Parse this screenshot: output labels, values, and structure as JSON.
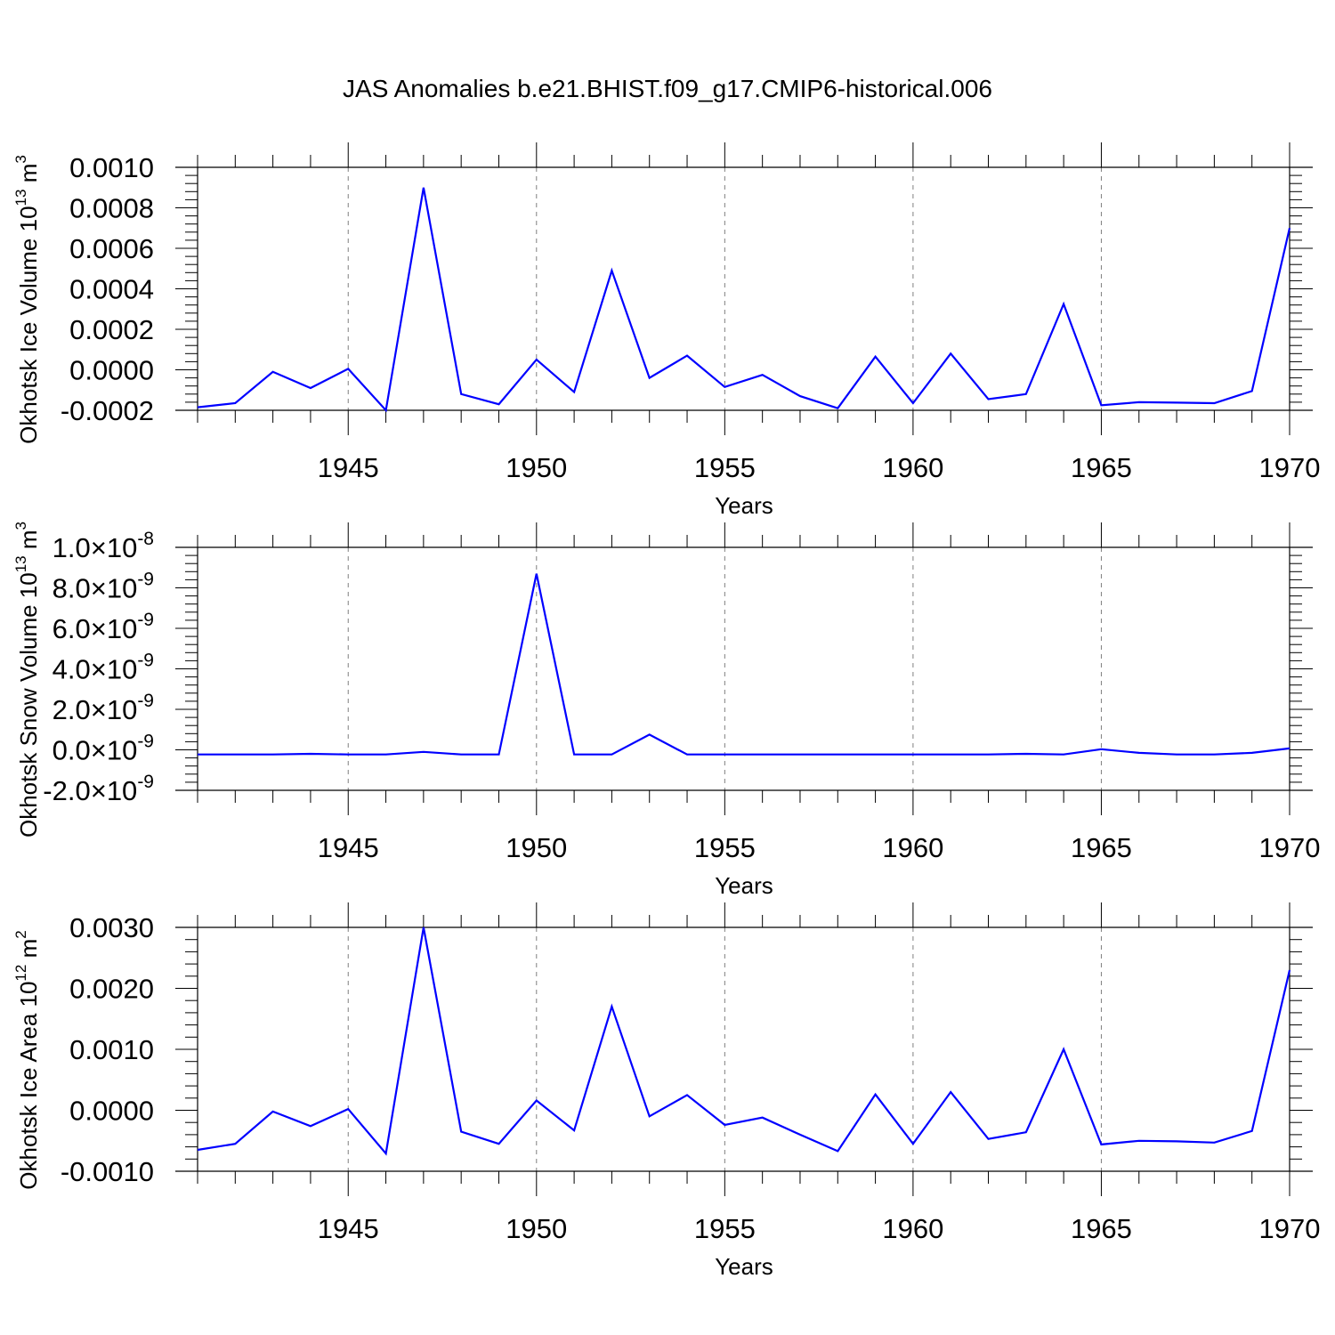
{
  "title": "JAS Anomalies b.e21.BHIST.f09_g17.CMIP6-historical.006",
  "colors": {
    "line": "#0000ff",
    "axis": "#000000",
    "grid": "#7f7f7f"
  },
  "chart_data": [
    {
      "type": "line",
      "name": "ice-volume",
      "ylabel_main": "Okhotsk Ice Volume 10",
      "ylabel_exp": "13",
      "ylabel_unit": " m",
      "ylabel_unit_exp": "3",
      "xlabel": "Years",
      "xlim": [
        1941,
        1971.2
      ],
      "ylim": [
        -0.0002,
        0.001
      ],
      "xticks": [
        1945,
        1950,
        1955,
        1960,
        1965,
        1970
      ],
      "xtick_labels": [
        "1945",
        "1950",
        "1955",
        "1960",
        "1965",
        "1970"
      ],
      "yticks": [
        -0.0002,
        0.0,
        0.0002,
        0.0004,
        0.0006,
        0.0008,
        0.001
      ],
      "ytick_labels": [
        "-0.0002",
        "0.0000",
        "0.0002",
        "0.0004",
        "0.0006",
        "0.0008",
        "0.0010"
      ],
      "x": [
        1941,
        1942,
        1943,
        1944,
        1945,
        1946,
        1947,
        1948,
        1949,
        1950,
        1951,
        1952,
        1953,
        1954,
        1955,
        1956,
        1957,
        1958,
        1959,
        1960,
        1961,
        1962,
        1963,
        1964,
        1965,
        1966,
        1967,
        1968,
        1969,
        1970
      ],
      "values": [
        -0.000185,
        -0.000165,
        -1e-05,
        -9e-05,
        5e-06,
        -0.0002,
        0.0009,
        -0.00012,
        -0.00017,
        5e-05,
        -0.00011,
        0.00049,
        -4e-05,
        7e-05,
        -8.5e-05,
        -2.5e-05,
        -0.00013,
        -0.00019,
        6.5e-05,
        -0.000165,
        8e-05,
        -0.000145,
        -0.00012,
        0.000325,
        -0.000175,
        -0.00016,
        -0.000162,
        -0.000165,
        -0.000105,
        0.0007
      ]
    },
    {
      "type": "line",
      "name": "snow-volume",
      "ylabel_main": "Okhotsk Snow Volume 10",
      "ylabel_exp": "13",
      "ylabel_unit": " m",
      "ylabel_unit_exp": "3",
      "xlabel": "Years",
      "xlim": [
        1941,
        1971.2
      ],
      "ylim": [
        -2e-09,
        1e-08
      ],
      "xticks": [
        1945,
        1950,
        1955,
        1960,
        1965,
        1970
      ],
      "xtick_labels": [
        "1945",
        "1950",
        "1955",
        "1960",
        "1965",
        "1970"
      ],
      "yticks": [
        -2e-09,
        0.0,
        2e-09,
        4e-09,
        6e-09,
        8e-09,
        1e-08
      ],
      "ytick_labels": [
        {
          "mant": "-2.0",
          "exp": "-9"
        },
        {
          "mant": "0.0",
          "exp": "-9"
        },
        {
          "mant": "2.0",
          "exp": "-9"
        },
        {
          "mant": "4.0",
          "exp": "-9"
        },
        {
          "mant": "6.0",
          "exp": "-9"
        },
        {
          "mant": "8.0",
          "exp": "-9"
        },
        {
          "mant": "1.0",
          "exp": "-8"
        }
      ],
      "x": [
        1941,
        1942,
        1943,
        1944,
        1945,
        1946,
        1947,
        1948,
        1949,
        1950,
        1951,
        1952,
        1953,
        1954,
        1955,
        1956,
        1957,
        1958,
        1959,
        1960,
        1961,
        1962,
        1963,
        1964,
        1965,
        1966,
        1967,
        1968,
        1969,
        1970
      ],
      "values": [
        -2.3e-10,
        -2.3e-10,
        -2.3e-10,
        -2e-10,
        -2.3e-10,
        -2.3e-10,
        -1e-10,
        -2.3e-10,
        -2.3e-10,
        8.7e-09,
        -2.3e-10,
        -2.3e-10,
        7.5e-10,
        -2.3e-10,
        -2.3e-10,
        -2.3e-10,
        -2.3e-10,
        -2.3e-10,
        -2.3e-10,
        -2.3e-10,
        -2.3e-10,
        -2.3e-10,
        -2e-10,
        -2.3e-10,
        3e-11,
        -1.5e-10,
        -2.3e-10,
        -2.3e-10,
        -1.5e-10,
        7e-11
      ]
    },
    {
      "type": "line",
      "name": "ice-area",
      "ylabel_main": "Okhotsk Ice Area 10",
      "ylabel_exp": "12",
      "ylabel_unit": " m",
      "ylabel_unit_exp": "2",
      "xlabel": "Years",
      "xlim": [
        1941,
        1971.2
      ],
      "ylim": [
        -0.001,
        0.003
      ],
      "xticks": [
        1945,
        1950,
        1955,
        1960,
        1965,
        1970
      ],
      "xtick_labels": [
        "1945",
        "1950",
        "1955",
        "1960",
        "1965",
        "1970"
      ],
      "yticks": [
        -0.001,
        0.0,
        0.001,
        0.002,
        0.003
      ],
      "ytick_labels": [
        "-0.0010",
        "0.0000",
        "0.0010",
        "0.0020",
        "0.0030"
      ],
      "x": [
        1941,
        1942,
        1943,
        1944,
        1945,
        1946,
        1947,
        1948,
        1949,
        1950,
        1951,
        1952,
        1953,
        1954,
        1955,
        1956,
        1957,
        1958,
        1959,
        1960,
        1961,
        1962,
        1963,
        1964,
        1965,
        1966,
        1967,
        1968,
        1969,
        1970
      ],
      "values": [
        -0.00065,
        -0.00055,
        -2e-05,
        -0.00026,
        2e-05,
        -0.00071,
        0.003,
        -0.00035,
        -0.00055,
        0.00016,
        -0.00033,
        0.0017,
        -0.0001,
        0.00025,
        -0.00024,
        -0.00012,
        -0.0004,
        -0.00067,
        0.00026,
        -0.00055,
        0.0003,
        -0.00047,
        -0.00036,
        0.001,
        -0.00056,
        -0.0005,
        -0.00051,
        -0.00053,
        -0.00034,
        0.0023
      ]
    }
  ]
}
